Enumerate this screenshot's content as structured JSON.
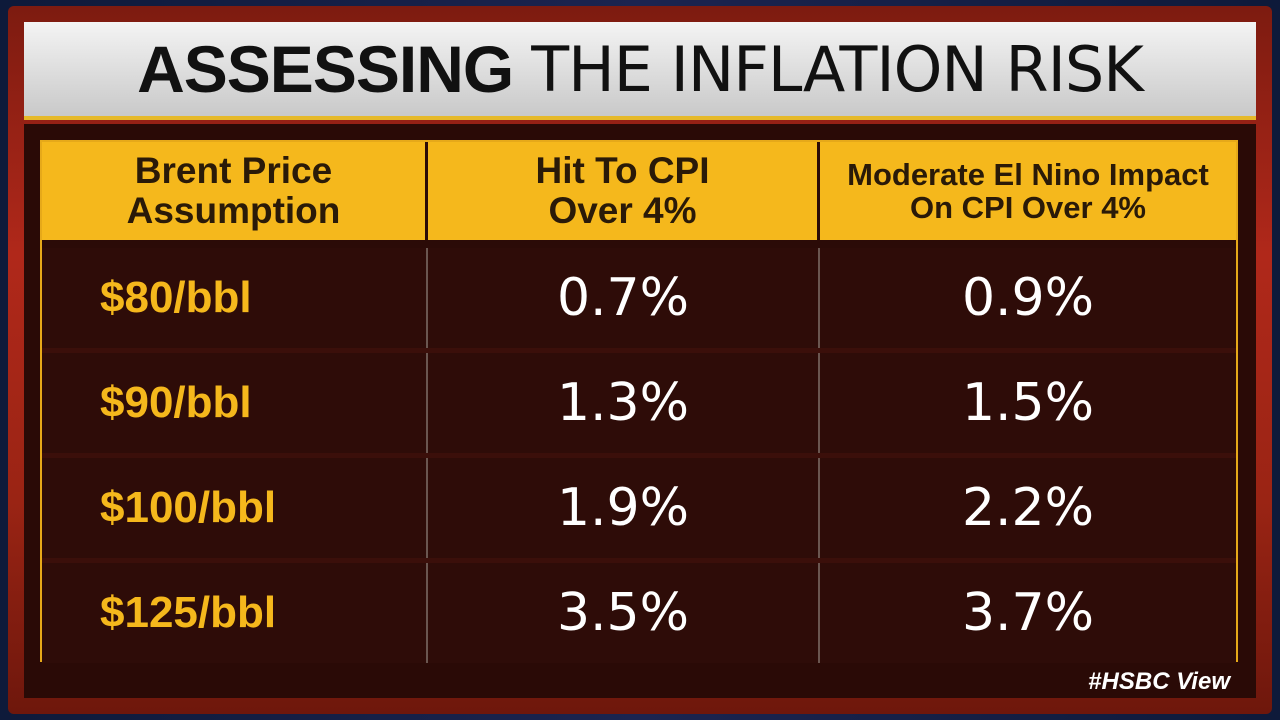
{
  "title": {
    "bold": "ASSESSING",
    "light": "THE INFLATION RISK"
  },
  "table": {
    "headers": [
      {
        "line1": "Brent Price",
        "line2": "Assumption"
      },
      {
        "line1": "Hit To CPI",
        "line2": "Over 4%"
      },
      {
        "line1": "Moderate El Nino Impact",
        "line2": "On CPI Over 4%"
      }
    ],
    "rows": [
      {
        "price": "$80/bbl",
        "cpi_hit": "0.7%",
        "el_nino": "0.9%"
      },
      {
        "price": "$90/bbl",
        "cpi_hit": "1.3%",
        "el_nino": "1.5%"
      },
      {
        "price": "$100/bbl",
        "cpi_hit": "1.9%",
        "el_nino": "2.2%"
      },
      {
        "price": "$125/bbl",
        "cpi_hit": "3.5%",
        "el_nino": "3.7%"
      }
    ]
  },
  "source": "#HSBC View",
  "colors": {
    "accent": "#f5b81c",
    "background": "#2b0b07",
    "frame": "#b0281a"
  }
}
